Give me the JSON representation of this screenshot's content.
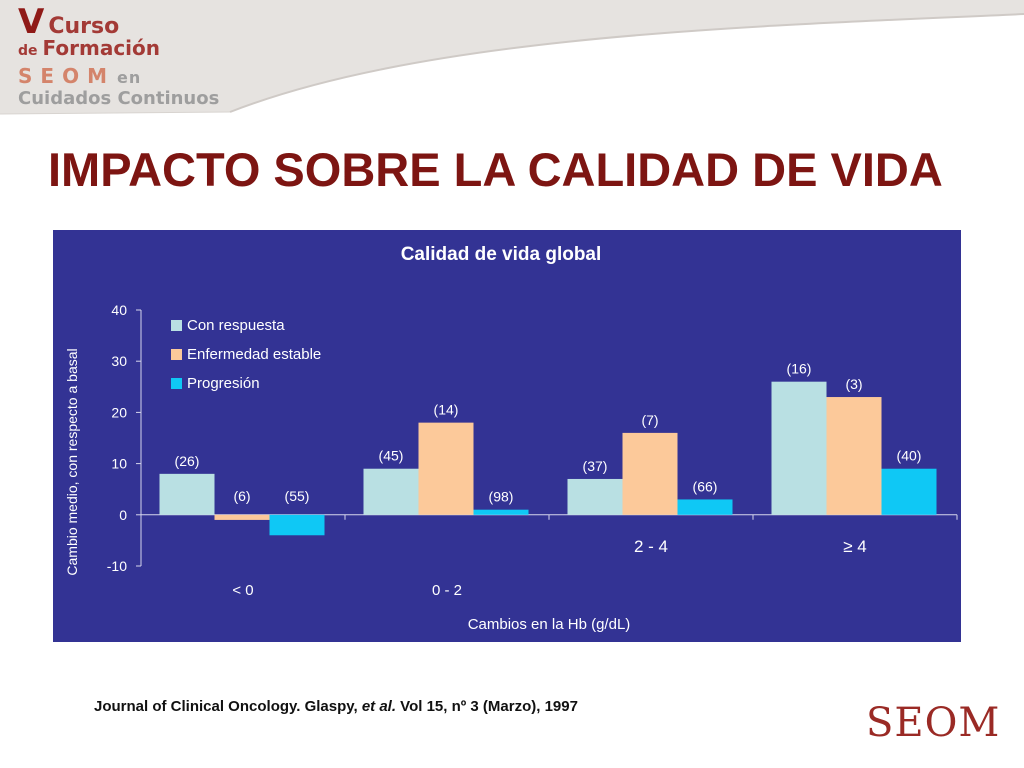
{
  "header": {
    "logo": {
      "line1_big": "V",
      "line1_rest": "Curso",
      "line2_small": "de",
      "line2_rest": "Formación",
      "line3": "SEOM",
      "line3_en": "en",
      "line4": "Cuidados Continuos"
    }
  },
  "slide": {
    "title": "IMPACTO SOBRE LA CALIDAD DE VIDA"
  },
  "citation": {
    "part1": "Journal of Clinical Oncology. Glaspy, ",
    "italic": "et al.",
    "part2": " Vol 15, nº 3 (Marzo), 1997"
  },
  "footer": {
    "logo_text": "SEOM"
  },
  "colors": {
    "brand_red": "#7d1512",
    "panel_bg": "#333394",
    "series_colors": [
      "#b9e0e3",
      "#fcc99a",
      "#0fc8f5"
    ]
  },
  "chart_data": {
    "type": "bar",
    "title": "Calidad de vida global",
    "xlabel": "Cambios en la Hb (g/dL)",
    "ylabel": "Cambio medio, con respecto a basal",
    "ylim": [
      -10,
      40
    ],
    "yticks": [
      -10,
      0,
      10,
      20,
      30,
      40
    ],
    "categories": [
      "< 0",
      "0 - 2",
      "2 - 4",
      "≥ 4"
    ],
    "series": [
      {
        "name": "Con respuesta",
        "values": [
          8,
          9,
          7,
          26
        ],
        "labels": [
          "(26)",
          "(45)",
          "(37)",
          "(16)"
        ]
      },
      {
        "name": "Enfermedad estable",
        "values": [
          -1,
          18,
          16,
          23
        ],
        "labels": [
          "(6)",
          "(14)",
          "(7)",
          "(3)"
        ]
      },
      {
        "name": "Progresión",
        "values": [
          -4,
          1,
          3,
          9
        ],
        "labels": [
          "(55)",
          "(98)",
          "(66)",
          "(40)"
        ]
      }
    ],
    "legend_position": "top-left",
    "grid": false
  }
}
